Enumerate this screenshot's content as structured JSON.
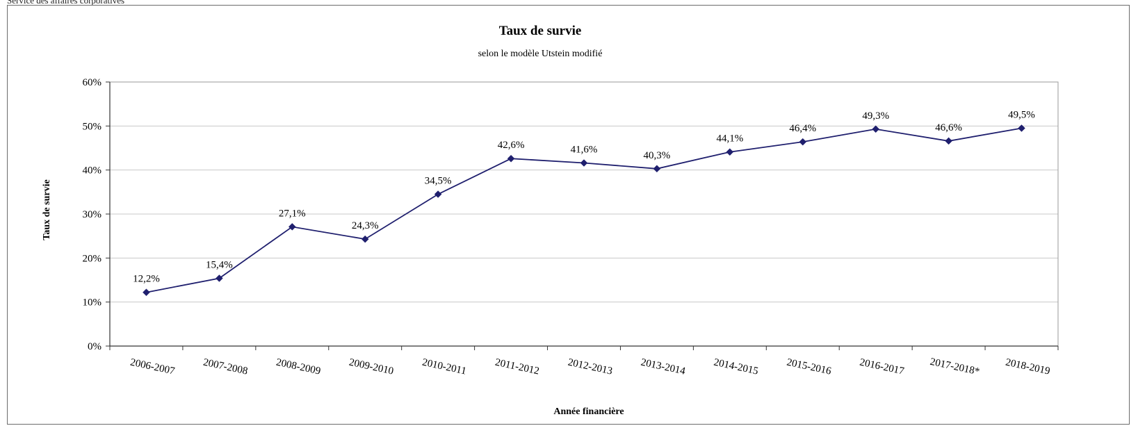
{
  "page_header": "Service des affaires corporatives",
  "chart_data": {
    "type": "line",
    "title": "Taux de survie",
    "subtitle": "selon le modèle Utstein modifié",
    "xlabel": "Année financière",
    "ylabel": "Taux de survie",
    "categories": [
      "2006-2007",
      "2007-2008",
      "2008-2009",
      "2009-2010",
      "2010-2011",
      "2011-2012",
      "2012-2013",
      "2013-2014",
      "2014-2015",
      "2015-2016",
      "2016-2017",
      "2017-2018*",
      "2018-2019"
    ],
    "values": [
      12.2,
      15.4,
      27.1,
      24.3,
      34.5,
      42.6,
      41.6,
      40.3,
      44.1,
      46.4,
      49.3,
      46.6,
      49.5
    ],
    "value_labels": [
      "12,2%",
      "15,4%",
      "27,1%",
      "24,3%",
      "34,5%",
      "42,6%",
      "41,6%",
      "40,3%",
      "44,1%",
      "46,4%",
      "49,3%",
      "46,6%",
      "49,5%"
    ],
    "ylim": [
      0,
      60
    ],
    "yticks": [
      0,
      10,
      20,
      30,
      40,
      50,
      60
    ],
    "ytick_labels": [
      "0%",
      "10%",
      "20%",
      "30%",
      "40%",
      "50%",
      "60%"
    ],
    "grid": true,
    "legend": "none",
    "line_color": "#1f1f6e",
    "marker": "diamond",
    "grid_color": "#c8c8c8"
  }
}
